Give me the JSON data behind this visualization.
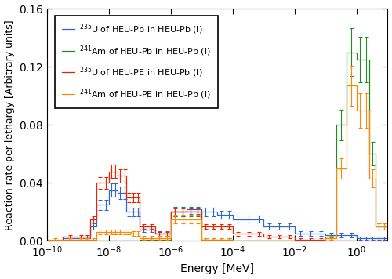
{
  "xlabel": "Energy [MeV]",
  "ylabel": "Reaction rate per lethargy [Arbitrary units]",
  "xlim": [
    1e-10,
    10
  ],
  "ylim": [
    0,
    0.16
  ],
  "yticks": [
    0.0,
    0.04,
    0.08,
    0.12,
    0.16
  ],
  "legend_labels": [
    "$^{235}$U of HEU-Pb in HEU-Pb (l)",
    "$^{241}$Am of HEU-Pb in HEU-Pb (l)",
    "$^{235}$U of HEU-PE in HEU-Pb (l)",
    "$^{241}$Am of HEU-PE in HEU-Pb (l)"
  ],
  "colors": [
    "#3366CC",
    "#228B22",
    "#EE2200",
    "#FF8800"
  ]
}
